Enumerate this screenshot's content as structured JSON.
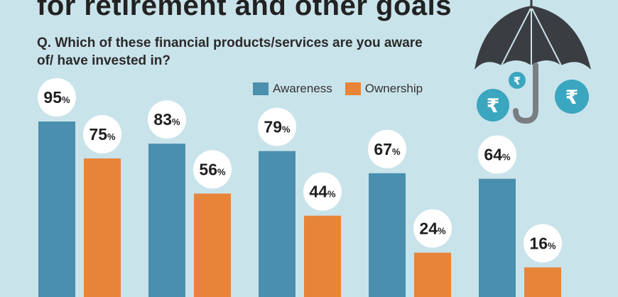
{
  "title": "for retirement and other goals",
  "question": "Q. Which of these financial products/services are you aware of/ have invested in?",
  "umbrella_coins": [
    "₹",
    "₹",
    "₹"
  ],
  "chart_data": {
    "type": "bar",
    "categories": [
      "",
      "",
      "",
      "",
      ""
    ],
    "series": [
      {
        "name": "Awareness",
        "color": "#4a8fae",
        "values": [
          95,
          83,
          79,
          67,
          64
        ]
      },
      {
        "name": "Ownership",
        "color": "#e8843a",
        "values": [
          75,
          56,
          44,
          24,
          16
        ]
      }
    ],
    "value_suffix": "%",
    "legend_position": "top",
    "grid": false
  }
}
